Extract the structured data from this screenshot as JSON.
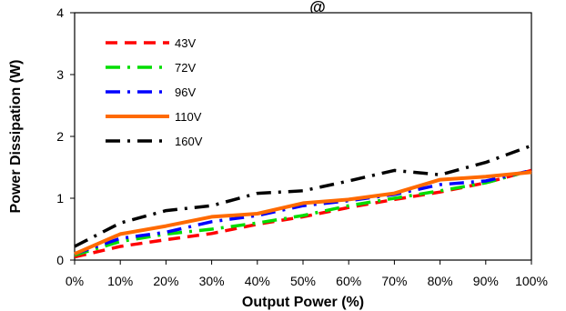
{
  "chart_data": {
    "type": "line",
    "title": "@",
    "xlabel": "Output Power (%)",
    "ylabel": "Power Dissipation (W)",
    "xlim": [
      0,
      100
    ],
    "ylim": [
      0,
      4
    ],
    "x_ticks": [
      "0%",
      "10%",
      "20%",
      "30%",
      "40%",
      "50%",
      "60%",
      "70%",
      "80%",
      "90%",
      "100%"
    ],
    "y_ticks": [
      "0",
      "1",
      "2",
      "3",
      "4"
    ],
    "grid": false,
    "legend_position": "top-left",
    "x": [
      0,
      10,
      20,
      30,
      40,
      50,
      60,
      70,
      80,
      90,
      100
    ],
    "series": [
      {
        "name": "43V",
        "color": "#ff0000",
        "dash": "dash",
        "values": [
          0.05,
          0.22,
          0.33,
          0.43,
          0.58,
          0.7,
          0.85,
          0.98,
          1.1,
          1.25,
          1.45
        ]
      },
      {
        "name": "72V",
        "color": "#00dd00",
        "dash": "dash-dot",
        "values": [
          0.08,
          0.3,
          0.42,
          0.5,
          0.6,
          0.72,
          0.88,
          1.0,
          1.12,
          1.25,
          1.45
        ]
      },
      {
        "name": "96V",
        "color": "#0000ff",
        "dash": "dash-dot",
        "values": [
          0.1,
          0.35,
          0.45,
          0.62,
          0.72,
          0.88,
          0.96,
          1.06,
          1.22,
          1.28,
          1.45
        ]
      },
      {
        "name": "110V",
        "color": "#ff6a00",
        "dash": "solid",
        "values": [
          0.1,
          0.42,
          0.55,
          0.7,
          0.75,
          0.92,
          0.98,
          1.08,
          1.3,
          1.35,
          1.42
        ]
      },
      {
        "name": "160V",
        "color": "#000000",
        "dash": "dash-dot",
        "values": [
          0.22,
          0.6,
          0.8,
          0.88,
          1.08,
          1.12,
          1.28,
          1.45,
          1.38,
          1.58,
          1.85
        ]
      }
    ]
  }
}
